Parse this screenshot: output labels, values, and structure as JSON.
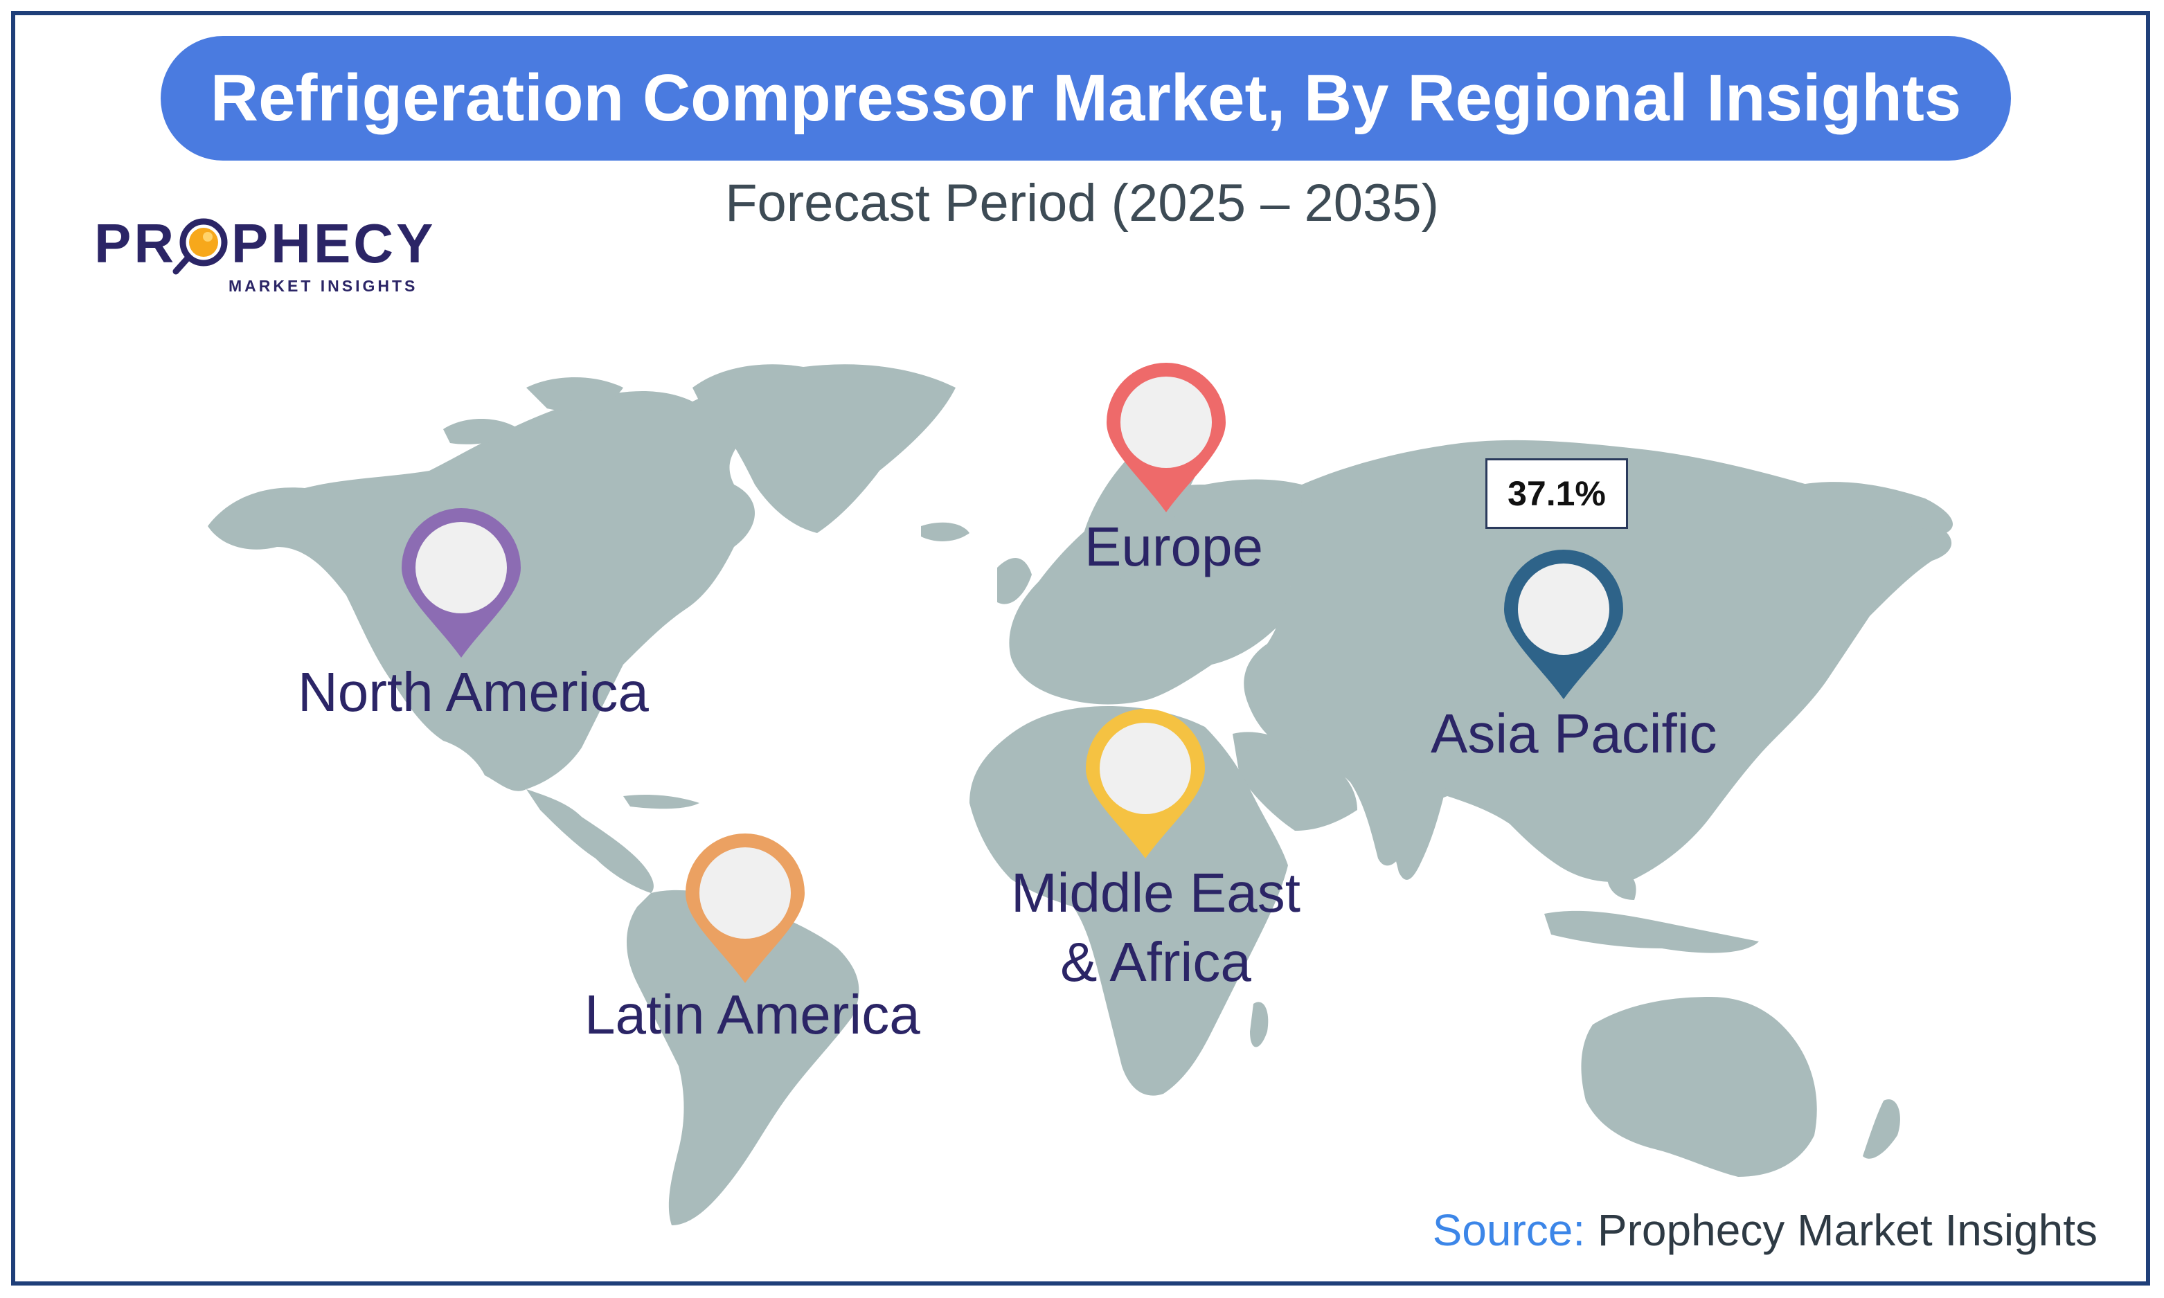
{
  "title": "Refrigeration Compressor Market, By Regional Insights",
  "subtitle": "Forecast Period (2025 – 2035)",
  "logo": {
    "name": "PROPHECY",
    "tagline": "MARKET INSIGHTS"
  },
  "regions": [
    {
      "name": "North America",
      "pin_color": "#8c6cb3"
    },
    {
      "name": "Europe",
      "pin_color": "#ee6a6a"
    },
    {
      "name": "Asia Pacific",
      "pin_color": "#2e6389"
    },
    {
      "name": "Middle East\n& Africa",
      "pin_color": "#f5c242"
    },
    {
      "name": "Latin America",
      "pin_color": "#eba162"
    }
  ],
  "highlight": {
    "region": "Asia Pacific",
    "share": "37.1%"
  },
  "source": {
    "label": "Source:",
    "value": " Prophecy Market Insights"
  },
  "colors": {
    "land": "#a9bbbb",
    "title_bar": "#4a7be0",
    "frame": "#1f3f79",
    "label_text": "#2b2566"
  }
}
